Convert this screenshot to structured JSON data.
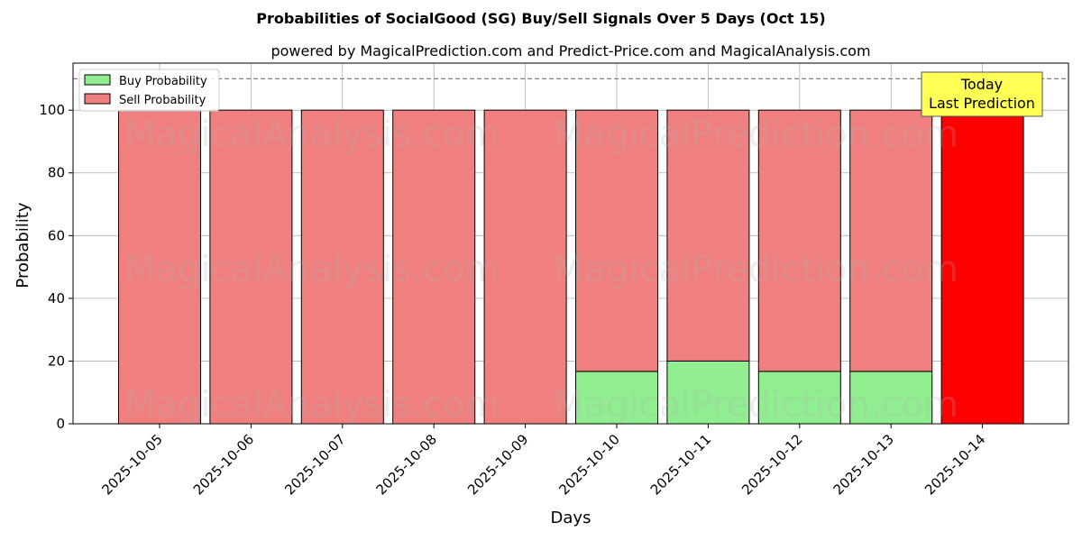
{
  "chart_data": {
    "type": "bar",
    "stacked": true,
    "title": "Probabilities of SocialGood (SG) Buy/Sell Signals Over 5 Days (Oct 15)",
    "subtitle": "powered by MagicalPrediction.com and Predict-Price.com and MagicalAnalysis.com",
    "xlabel": "Days",
    "ylabel": "Probability",
    "ylim": [
      0,
      115
    ],
    "yticks": [
      0,
      20,
      40,
      60,
      80,
      100
    ],
    "grid": true,
    "legend_position": "top-left",
    "reference_line": {
      "value": 110,
      "style": "dashed",
      "color": "#808080"
    },
    "categories": [
      "2025-10-05",
      "2025-10-06",
      "2025-10-07",
      "2025-10-08",
      "2025-10-09",
      "2025-10-10",
      "2025-10-11",
      "2025-10-12",
      "2025-10-13",
      "2025-10-14"
    ],
    "series": [
      {
        "name": "Buy Probability",
        "color": "#90ee90",
        "values": [
          0,
          0,
          0,
          0,
          0,
          16.7,
          20,
          16.7,
          16.7,
          0
        ]
      },
      {
        "name": "Sell Probability",
        "color": "#f08080",
        "values": [
          100,
          100,
          100,
          100,
          100,
          83.3,
          80,
          83.3,
          83.3,
          100
        ]
      }
    ],
    "highlight": {
      "category": "2025-10-14",
      "color": "#ff0000"
    },
    "annotation": {
      "lines": [
        "Today",
        "Last Prediction"
      ],
      "background": "#ffff55"
    },
    "watermarks": [
      "MagicalAnalysis.com",
      "MagicalPrediction.com"
    ]
  }
}
